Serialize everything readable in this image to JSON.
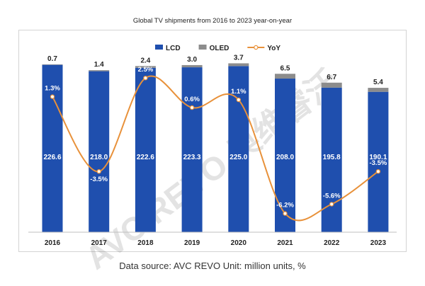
{
  "chart_data": {
    "type": "bar",
    "title": "Global TV shipments from 2016 to 2023 year-on-year",
    "categories": [
      "2016",
      "2017",
      "2018",
      "2019",
      "2020",
      "2021",
      "2022",
      "2023"
    ],
    "series": [
      {
        "name": "LCD",
        "type": "bar",
        "stacked": true,
        "color": "#1f4fae",
        "values": [
          226.6,
          218.0,
          222.6,
          223.3,
          225.0,
          208.0,
          195.8,
          190.1
        ],
        "labels": [
          "226.6",
          "218.0",
          "222.6",
          "223.3",
          "225.0",
          "208.0",
          "195.8",
          "190.1"
        ]
      },
      {
        "name": "OLED",
        "type": "bar",
        "stacked": true,
        "color": "#8c8c8c",
        "values": [
          0.7,
          1.4,
          2.4,
          3.0,
          3.7,
          6.5,
          6.7,
          5.4
        ],
        "labels": [
          "0.7",
          "1.4",
          "2.4",
          "3.0",
          "3.7",
          "6.5",
          "6.7",
          "5.4"
        ]
      },
      {
        "name": "YoY",
        "type": "line",
        "color": "#e8913a",
        "axis": "secondary",
        "values": [
          1.3,
          -3.5,
          2.5,
          0.6,
          1.1,
          -6.2,
          -5.6,
          -3.5
        ],
        "labels": [
          "1.3%",
          "-3.5%",
          "2.5%",
          "0.6%",
          "1.1%",
          "-6.2%",
          "-5.6%",
          "-3.5%"
        ]
      }
    ],
    "legend": {
      "position": "top-center",
      "items": [
        {
          "name": "LCD",
          "marker": "square"
        },
        {
          "name": "OLED",
          "marker": "square"
        },
        {
          "name": "YoY",
          "marker": "line-dot"
        }
      ]
    },
    "ylim": [
      0,
      232
    ],
    "y2lim": [
      -7.4,
      3.6
    ],
    "grid": false,
    "watermark": "AVC REVO 奥维睿沃",
    "source_note": "Data source: AVC REVO Unit: million units, %"
  }
}
